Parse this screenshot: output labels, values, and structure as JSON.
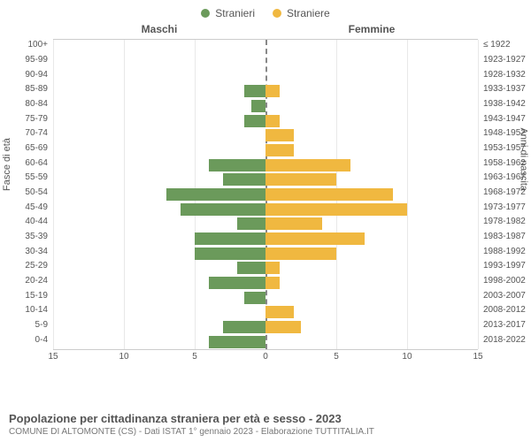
{
  "legend": {
    "male": {
      "label": "Stranieri",
      "color": "#6b9a5b"
    },
    "female": {
      "label": "Straniere",
      "color": "#f0b840"
    }
  },
  "headers": {
    "male": "Maschi",
    "female": "Femmine"
  },
  "axis": {
    "left_label": "Fasce di età",
    "right_label": "Anni di nascita",
    "xmax": 15,
    "xticks": [
      15,
      10,
      5,
      0,
      5,
      10,
      15
    ],
    "xtick_positions": [
      0,
      16.67,
      33.33,
      50,
      66.67,
      83.33,
      100
    ],
    "grid_color": "#e8e8e8",
    "center_line_color": "#888888",
    "tick_fontsize": 10,
    "label_fontsize": 11
  },
  "chart": {
    "type": "population-pyramid",
    "bar_gap_ratio": 0.15,
    "male_color": "#6b9a5b",
    "female_color": "#f0b840",
    "background_color": "#ffffff"
  },
  "rows": [
    {
      "age": "100+",
      "birth": "≤ 1922",
      "male": 0,
      "female": 0
    },
    {
      "age": "95-99",
      "birth": "1923-1927",
      "male": 0,
      "female": 0
    },
    {
      "age": "90-94",
      "birth": "1928-1932",
      "male": 0,
      "female": 0
    },
    {
      "age": "85-89",
      "birth": "1933-1937",
      "male": 1.5,
      "female": 1
    },
    {
      "age": "80-84",
      "birth": "1938-1942",
      "male": 1,
      "female": 0
    },
    {
      "age": "75-79",
      "birth": "1943-1947",
      "male": 1.5,
      "female": 1
    },
    {
      "age": "70-74",
      "birth": "1948-1952",
      "male": 0,
      "female": 2
    },
    {
      "age": "65-69",
      "birth": "1953-1957",
      "male": 0,
      "female": 2
    },
    {
      "age": "60-64",
      "birth": "1958-1962",
      "male": 4,
      "female": 6
    },
    {
      "age": "55-59",
      "birth": "1963-1967",
      "male": 3,
      "female": 5
    },
    {
      "age": "50-54",
      "birth": "1968-1972",
      "male": 7,
      "female": 9
    },
    {
      "age": "45-49",
      "birth": "1973-1977",
      "male": 6,
      "female": 10
    },
    {
      "age": "40-44",
      "birth": "1978-1982",
      "male": 2,
      "female": 4
    },
    {
      "age": "35-39",
      "birth": "1983-1987",
      "male": 5,
      "female": 7
    },
    {
      "age": "30-34",
      "birth": "1988-1992",
      "male": 5,
      "female": 5
    },
    {
      "age": "25-29",
      "birth": "1993-1997",
      "male": 2,
      "female": 1
    },
    {
      "age": "20-24",
      "birth": "1998-2002",
      "male": 4,
      "female": 1
    },
    {
      "age": "15-19",
      "birth": "2003-2007",
      "male": 1.5,
      "female": 0
    },
    {
      "age": "10-14",
      "birth": "2008-2012",
      "male": 0,
      "female": 2
    },
    {
      "age": "5-9",
      "birth": "2013-2017",
      "male": 3,
      "female": 2.5
    },
    {
      "age": "0-4",
      "birth": "2018-2022",
      "male": 4,
      "female": 0
    }
  ],
  "footer": {
    "title": "Popolazione per cittadinanza straniera per età e sesso - 2023",
    "subtitle": "COMUNE DI ALTOMONTE (CS) - Dati ISTAT 1° gennaio 2023 - Elaborazione TUTTITALIA.IT"
  }
}
